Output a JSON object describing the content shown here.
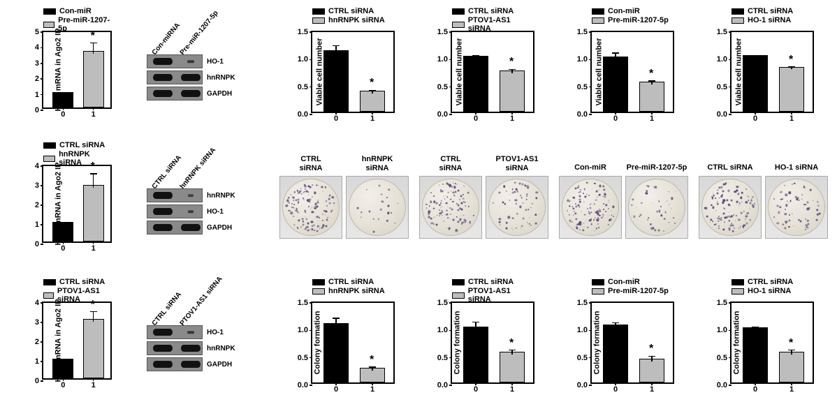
{
  "colors": {
    "black": "#000000",
    "grey": "#bdbdbd"
  },
  "col1": {
    "charts": [
      {
        "legend": [
          {
            "label": "Con-miR",
            "color": "#000000"
          },
          {
            "label": "Pre-miR-1207-5p",
            "color": "#bdbdbd"
          }
        ],
        "yaxis": "HO-1 mRNA in Ago2 IP",
        "ymax": 5,
        "ytick_step": 1,
        "bars": [
          {
            "value": 1.0,
            "err": 0.0,
            "color": "#000000",
            "xlabel": "0"
          },
          {
            "value": 3.6,
            "err": 0.7,
            "color": "#bdbdbd",
            "xlabel": "1",
            "star": true
          }
        ]
      },
      {
        "legend": [
          {
            "label": "CTRL siRNA",
            "color": "#000000"
          },
          {
            "label": "hnRNPK siRNA",
            "color": "#bdbdbd"
          }
        ],
        "yaxis": "HO-1 mRNA in Ago2 IP",
        "ymax": 4,
        "ytick_step": 1,
        "bars": [
          {
            "value": 1.0,
            "err": 0.0,
            "color": "#000000",
            "xlabel": "0"
          },
          {
            "value": 2.9,
            "err": 0.7,
            "color": "#bdbdbd",
            "xlabel": "1",
            "star": true
          }
        ]
      },
      {
        "legend": [
          {
            "label": "CTRL siRNA",
            "color": "#000000"
          },
          {
            "label": "PTOV1-AS1 siRNA",
            "color": "#bdbdbd"
          }
        ],
        "yaxis": "HO-1 mRNA in Ago2 IP",
        "ymax": 4,
        "ytick_step": 1,
        "bars": [
          {
            "value": 1.0,
            "err": 0.0,
            "color": "#000000",
            "xlabel": "0"
          },
          {
            "value": 3.05,
            "err": 0.5,
            "color": "#bdbdbd",
            "xlabel": "1",
            "star": true
          }
        ]
      }
    ]
  },
  "col2": {
    "blots": [
      {
        "lanes": [
          "Con-miRNA",
          "Pre-miR-1207-5p"
        ],
        "rows": [
          {
            "label": "HO-1",
            "band_intensity": [
              1.0,
              0.35
            ]
          },
          {
            "label": "hnRNPK",
            "band_intensity": [
              1.0,
              1.0
            ]
          },
          {
            "label": "GAPDH",
            "band_intensity": [
              1.0,
              1.0
            ]
          }
        ]
      },
      {
        "lanes": [
          "CTRL siRNA",
          "hnRNPK siRNA"
        ],
        "rows": [
          {
            "label": "hnRNPK",
            "band_intensity": [
              1.0,
              0.2
            ]
          },
          {
            "label": "HO-1",
            "band_intensity": [
              1.0,
              0.3
            ]
          },
          {
            "label": "GAPDH",
            "band_intensity": [
              1.0,
              1.0
            ]
          }
        ]
      },
      {
        "lanes": [
          "CTRL siRNA",
          "PTOV1-AS1 siRNA"
        ],
        "rows": [
          {
            "label": "HO-1",
            "band_intensity": [
              1.0,
              0.35
            ]
          },
          {
            "label": "hnRNPK",
            "band_intensity": [
              1.0,
              1.0
            ]
          },
          {
            "label": "GAPDH",
            "band_intensity": [
              1.0,
              1.0
            ]
          }
        ]
      }
    ]
  },
  "viability": [
    {
      "legend": [
        {
          "label": "CTRL siRNA",
          "color": "#000000"
        },
        {
          "label": "hnRNPK siRNA",
          "color": "#bdbdbd"
        }
      ],
      "yaxis": "Viable cell number",
      "ymax": 1.5,
      "ytick_step": 0.5,
      "bars": [
        {
          "value": 1.12,
          "err": 0.13,
          "color": "#000000",
          "xlabel": "0"
        },
        {
          "value": 0.38,
          "err": 0.06,
          "color": "#bdbdbd",
          "xlabel": "1",
          "star": true
        }
      ]
    },
    {
      "legend": [
        {
          "label": "CTRL siRNA",
          "color": "#000000"
        },
        {
          "label": "PTOV1-AS1 siRNA",
          "color": "#bdbdbd"
        }
      ],
      "yaxis": "Viable cell number",
      "ymax": 1.5,
      "ytick_step": 0.5,
      "bars": [
        {
          "value": 1.02,
          "err": 0.05,
          "color": "#000000",
          "xlabel": "0"
        },
        {
          "value": 0.75,
          "err": 0.07,
          "color": "#bdbdbd",
          "xlabel": "1",
          "star": true
        }
      ]
    },
    {
      "legend": [
        {
          "label": "Con-miR",
          "color": "#000000"
        },
        {
          "label": "Pre-miR-1207-5p",
          "color": "#bdbdbd"
        }
      ],
      "yaxis": "Viable cell number",
      "ymax": 1.5,
      "ytick_step": 0.5,
      "bars": [
        {
          "value": 1.0,
          "err": 0.12,
          "color": "#000000",
          "xlabel": "0"
        },
        {
          "value": 0.55,
          "err": 0.06,
          "color": "#bdbdbd",
          "xlabel": "1",
          "star": true
        }
      ]
    },
    {
      "legend": [
        {
          "label": "CTRL siRNA",
          "color": "#000000"
        },
        {
          "label": "HO-1 siRNA",
          "color": "#bdbdbd"
        }
      ],
      "yaxis": "Viable cell number",
      "ymax": 1.5,
      "ytick_step": 0.5,
      "bars": [
        {
          "value": 1.03,
          "err": 0.04,
          "color": "#000000",
          "xlabel": "0"
        },
        {
          "value": 0.82,
          "err": 0.05,
          "color": "#bdbdbd",
          "xlabel": "1",
          "star": true
        }
      ]
    }
  ],
  "plates": [
    {
      "hdr": [
        "CTRL",
        "siRNA"
      ],
      "density": 0.9
    },
    {
      "hdr": [
        "hnRNPK",
        "siRNA"
      ],
      "density": 0.15
    },
    {
      "hdr": [
        "CTRL",
        "siRNA"
      ],
      "density": 0.85
    },
    {
      "hdr": [
        "PTOV1-AS1",
        "siRNA"
      ],
      "density": 0.4
    },
    {
      "hdr": [
        "Con-miR"
      ],
      "density": 0.9
    },
    {
      "hdr": [
        "Pre-miR-1207-5p"
      ],
      "density": 0.3
    },
    {
      "hdr": [
        "CTRL siRNA"
      ],
      "density": 0.9
    },
    {
      "hdr": [
        "HO-1 siRNA"
      ],
      "density": 0.45
    }
  ],
  "colony": [
    {
      "legend": [
        {
          "label": "CTRL siRNA",
          "color": "#000000"
        },
        {
          "label": "hnRNPK siRNA",
          "color": "#bdbdbd"
        }
      ],
      "yaxis": "Colony formation",
      "ymax": 1.5,
      "ytick_step": 0.5,
      "bars": [
        {
          "value": 1.08,
          "err": 0.14,
          "color": "#000000",
          "xlabel": "0"
        },
        {
          "value": 0.27,
          "err": 0.06,
          "color": "#bdbdbd",
          "xlabel": "1",
          "star": true
        }
      ]
    },
    {
      "legend": [
        {
          "label": "CTRL siRNA",
          "color": "#000000"
        },
        {
          "label": "PTOV1-AS1 siRNA",
          "color": "#bdbdbd"
        }
      ],
      "yaxis": "Colony formation",
      "ymax": 1.5,
      "ytick_step": 0.5,
      "bars": [
        {
          "value": 1.02,
          "err": 0.13,
          "color": "#000000",
          "xlabel": "0"
        },
        {
          "value": 0.56,
          "err": 0.08,
          "color": "#bdbdbd",
          "xlabel": "1",
          "star": true
        }
      ]
    },
    {
      "legend": [
        {
          "label": "Con-miR",
          "color": "#000000"
        },
        {
          "label": "Pre-miR-1207-5p",
          "color": "#bdbdbd"
        }
      ],
      "yaxis": "Colony formation",
      "ymax": 1.5,
      "ytick_step": 0.5,
      "bars": [
        {
          "value": 1.05,
          "err": 0.09,
          "color": "#000000",
          "xlabel": "0"
        },
        {
          "value": 0.43,
          "err": 0.1,
          "color": "#bdbdbd",
          "xlabel": "1",
          "star": true
        }
      ]
    },
    {
      "legend": [
        {
          "label": "CTRL siRNA",
          "color": "#000000"
        },
        {
          "label": "HO-1 siRNA",
          "color": "#bdbdbd"
        }
      ],
      "yaxis": "Colony formation",
      "ymax": 1.5,
      "ytick_step": 0.5,
      "bars": [
        {
          "value": 1.0,
          "err": 0.06,
          "color": "#000000",
          "xlabel": "0"
        },
        {
          "value": 0.56,
          "err": 0.08,
          "color": "#bdbdbd",
          "xlabel": "1",
          "star": true
        }
      ]
    }
  ]
}
